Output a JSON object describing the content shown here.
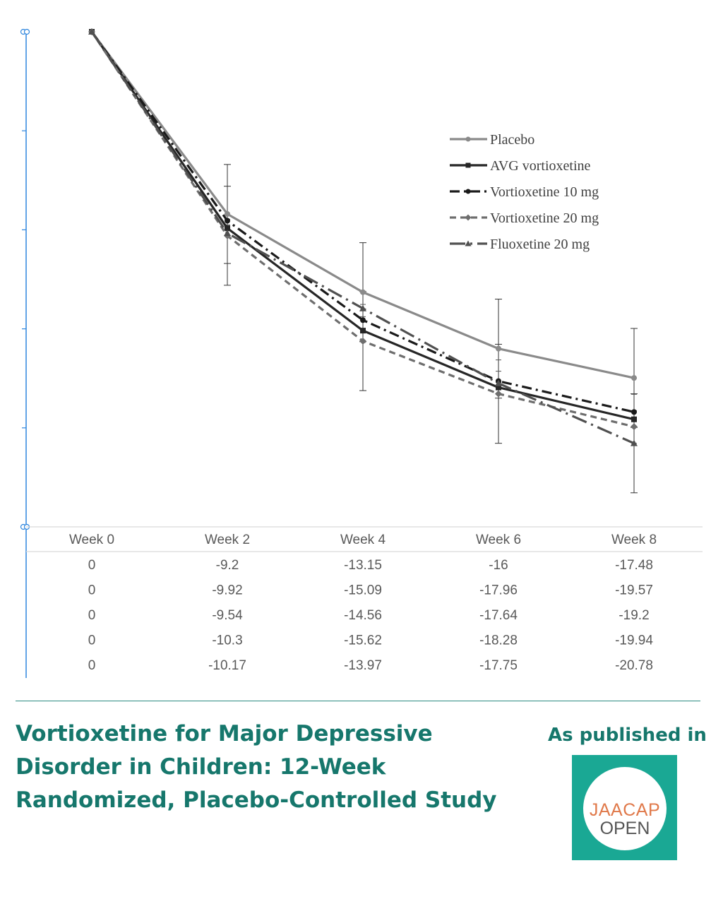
{
  "chart_data": {
    "type": "line",
    "categories": [
      "Week 0",
      "Week 2",
      "Week 4",
      "Week 6",
      "Week 8"
    ],
    "ylim": [
      -25,
      0
    ],
    "series": [
      {
        "name": "Placebo",
        "values": [
          0,
          -9.2,
          -13.15,
          -16,
          -17.48
        ],
        "color": "#8a8a8a",
        "style": "solid",
        "marker": "circle"
      },
      {
        "name": "AVG vortioxetine",
        "values": [
          0,
          -9.92,
          -15.09,
          -17.96,
          -19.57
        ],
        "color": "#262626",
        "style": "solid",
        "marker": "square"
      },
      {
        "name": "Vortioxetine 10 mg",
        "values": [
          0,
          -9.54,
          -14.56,
          -17.64,
          -19.2
        ],
        "color": "#1a1a1a",
        "style": "dash-dot",
        "marker": "circle"
      },
      {
        "name": "Vortioxetine 20 mg",
        "values": [
          0,
          -10.3,
          -15.62,
          -18.28,
          -19.94
        ],
        "color": "#6e6e6e",
        "style": "dashed",
        "marker": "diamond"
      },
      {
        "name": "Fluoxetine 20 mg",
        "values": [
          0,
          -10.17,
          -13.97,
          -17.75,
          -20.78
        ],
        "color": "#505050",
        "style": "long-dash-dot",
        "marker": "triangle"
      }
    ],
    "data_table": [
      [
        "0",
        "-9.2",
        "-13.15",
        "-16",
        "-17.48"
      ],
      [
        "0",
        "-9.92",
        "-15.09",
        "-17.96",
        "-19.57"
      ],
      [
        "0",
        "-9.54",
        "-14.56",
        "-17.64",
        "-19.2"
      ],
      [
        "0",
        "-10.3",
        "-15.62",
        "-18.28",
        "-19.94"
      ],
      [
        "0",
        "-10.17",
        "-13.97",
        "-17.75",
        "-20.78"
      ]
    ],
    "legend_placement": "top-right",
    "grid": false,
    "error_bars": true
  },
  "article": {
    "title": "Vortioxetine for Major Depressive Disorder in Children: 12-Week Randomized, Placebo-Controlled Study",
    "published_label": "As published in",
    "journal_logo_line1": "JAACAP",
    "journal_logo_line2": "OPEN"
  },
  "colors": {
    "brand": "#16776c",
    "logo_background": "#1aa894",
    "logo_accent": "#e0794a",
    "axis": "#2e86de"
  }
}
